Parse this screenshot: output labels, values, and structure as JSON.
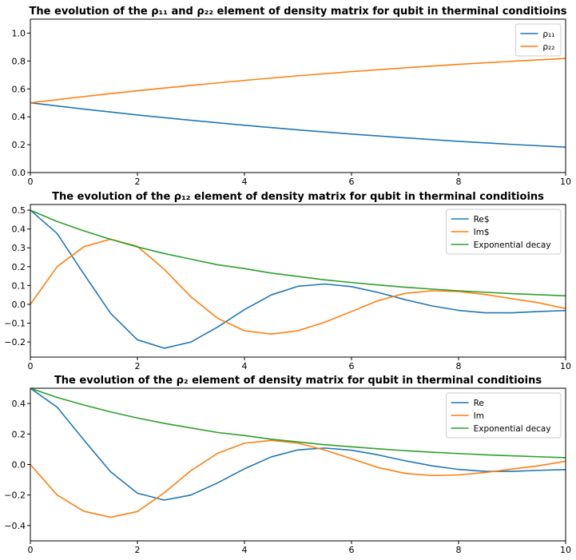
{
  "chart_data": [
    {
      "type": "line",
      "title": "The evolution of the ρ₁₁ and ρ₂₂ element of density matrix for qubit in therminal conditioins",
      "xlabel": "",
      "ylabel": "",
      "xlim": [
        0,
        10
      ],
      "ylim": [
        0,
        1.1
      ],
      "xticks": [
        "0",
        "2",
        "4",
        "6",
        "8",
        "10"
      ],
      "yticks": [
        "0.0",
        "0.2",
        "0.4",
        "0.6",
        "0.8",
        "1.0"
      ],
      "grid": false,
      "legend": "top-right",
      "x": [
        0,
        1,
        2,
        3,
        4,
        5,
        6,
        7,
        8,
        9,
        10
      ],
      "series": [
        {
          "name": "ρ₁₁",
          "color": "#1f77b4",
          "values": [
            0.5,
            0.455,
            0.413,
            0.375,
            0.339,
            0.306,
            0.276,
            0.249,
            0.224,
            0.202,
            0.182
          ]
        },
        {
          "name": "ρ₂₂",
          "color": "#ff7f0e",
          "values": [
            0.5,
            0.545,
            0.587,
            0.625,
            0.661,
            0.694,
            0.724,
            0.751,
            0.776,
            0.798,
            0.818
          ]
        }
      ]
    },
    {
      "type": "line",
      "title": "The evolution of the ρ₁₂ element of density matrix for qubit in therminal conditioins",
      "xlabel": "",
      "ylabel": "",
      "xlim": [
        0,
        10
      ],
      "ylim": [
        -0.28,
        0.53
      ],
      "xticks": [
        "0",
        "2",
        "4",
        "6",
        "8",
        "10"
      ],
      "yticks": [
        "−0.2",
        "−0.1",
        "0.0",
        "0.1",
        "0.2",
        "0.3",
        "0.4",
        "0.5"
      ],
      "grid": false,
      "legend": "top-right",
      "x": [
        0,
        0.5,
        1,
        1.5,
        2,
        2.5,
        3,
        3.5,
        4,
        4.5,
        5,
        5.5,
        6,
        6.5,
        7,
        7.5,
        8,
        8.5,
        9,
        9.5,
        10
      ],
      "series": [
        {
          "name": "Re$",
          "color": "#1f77b4",
          "values": [
            0.5,
            0.376,
            0.161,
            -0.048,
            -0.188,
            -0.233,
            -0.2,
            -0.12,
            -0.028,
            0.05,
            0.096,
            0.108,
            0.094,
            0.063,
            0.025,
            -0.008,
            -0.032,
            -0.045,
            -0.045,
            -0.038,
            -0.033
          ]
        },
        {
          "name": "Im$",
          "color": "#ff7f0e",
          "values": [
            0.0,
            0.2,
            0.306,
            0.346,
            0.308,
            0.186,
            0.04,
            -0.074,
            -0.14,
            -0.158,
            -0.14,
            -0.095,
            -0.038,
            0.02,
            0.058,
            0.072,
            0.068,
            0.052,
            0.03,
            0.008,
            -0.022
          ]
        },
        {
          "name": "Exponential decay",
          "color": "#2ca02c",
          "values": [
            0.5,
            0.44,
            0.39,
            0.345,
            0.305,
            0.27,
            0.24,
            0.21,
            0.19,
            0.166,
            0.148,
            0.13,
            0.116,
            0.103,
            0.091,
            0.081,
            0.072,
            0.064,
            0.057,
            0.051,
            0.045
          ]
        }
      ]
    },
    {
      "type": "line",
      "title": "The evolution of the ρ₂ element of density matrix for qubit in therminal conditioins",
      "xlabel": "",
      "ylabel": "",
      "xlim": [
        0,
        10
      ],
      "ylim": [
        -0.5,
        0.5
      ],
      "xticks": [
        "0",
        "2",
        "4",
        "6",
        "8",
        "10"
      ],
      "yticks": [
        "−0.4",
        "−0.2",
        "0.0",
        "0.2",
        "0.4"
      ],
      "grid": false,
      "legend": "top-right",
      "x": [
        0,
        0.5,
        1,
        1.5,
        2,
        2.5,
        3,
        3.5,
        4,
        4.5,
        5,
        5.5,
        6,
        6.5,
        7,
        7.5,
        8,
        8.5,
        9,
        9.5,
        10
      ],
      "series": [
        {
          "name": "Re",
          "color": "#1f77b4",
          "values": [
            0.5,
            0.376,
            0.161,
            -0.048,
            -0.188,
            -0.233,
            -0.2,
            -0.12,
            -0.028,
            0.05,
            0.096,
            0.108,
            0.094,
            0.063,
            0.025,
            -0.008,
            -0.032,
            -0.045,
            -0.045,
            -0.038,
            -0.033
          ]
        },
        {
          "name": "Im",
          "color": "#ff7f0e",
          "values": [
            0.0,
            -0.2,
            -0.306,
            -0.346,
            -0.308,
            -0.186,
            -0.04,
            0.074,
            0.14,
            0.158,
            0.14,
            0.095,
            0.038,
            -0.02,
            -0.058,
            -0.072,
            -0.068,
            -0.052,
            -0.03,
            -0.008,
            0.022
          ]
        },
        {
          "name": "Exponential decay",
          "color": "#2ca02c",
          "values": [
            0.5,
            0.44,
            0.39,
            0.345,
            0.305,
            0.27,
            0.24,
            0.21,
            0.19,
            0.166,
            0.148,
            0.13,
            0.116,
            0.103,
            0.091,
            0.081,
            0.072,
            0.064,
            0.057,
            0.051,
            0.045
          ]
        }
      ]
    }
  ]
}
